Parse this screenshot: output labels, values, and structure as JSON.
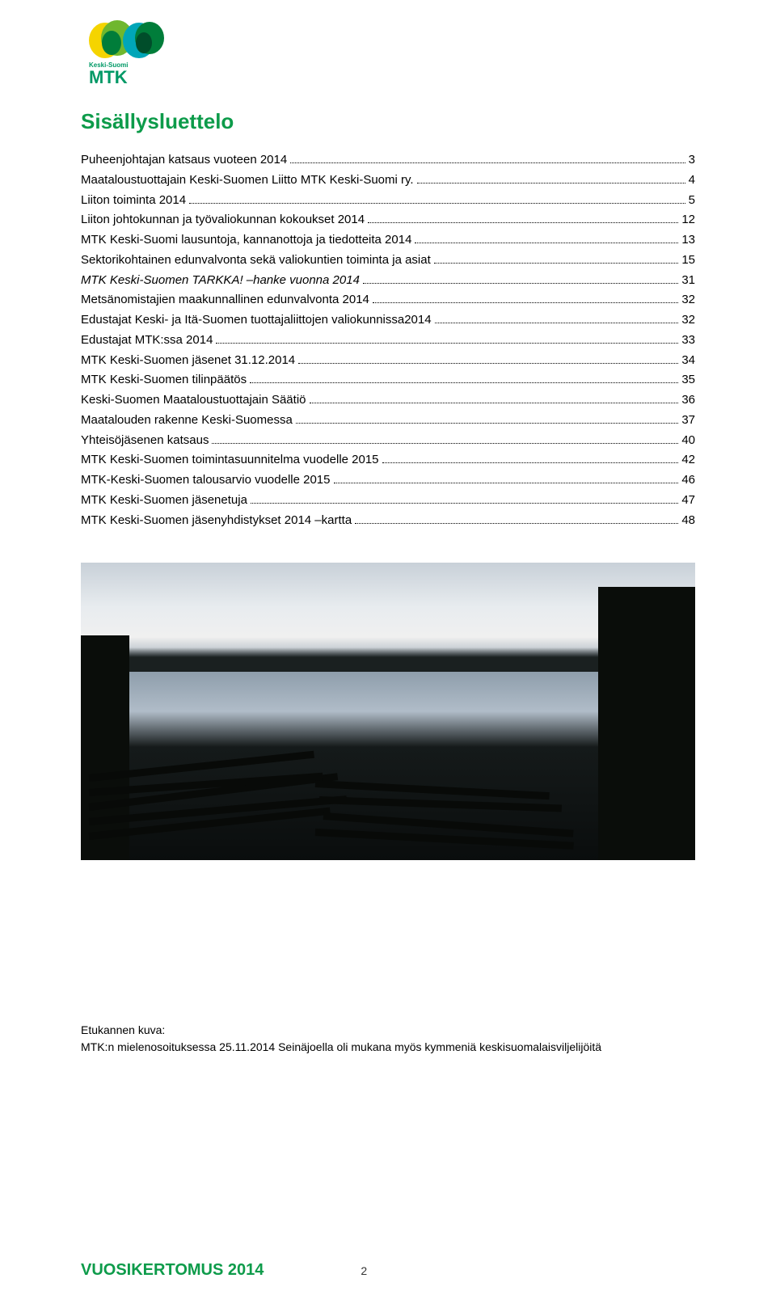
{
  "logo": {
    "org_prefix": "Keski-Suomi",
    "org_name": "MTK",
    "colors": {
      "yellow": "#f5d400",
      "green_light": "#6fb72e",
      "green_dark": "#007d3a",
      "teal": "#00a6b8",
      "text": "#009966"
    }
  },
  "title": "Sisällysluettelo",
  "title_color": "#0d9b4a",
  "toc": {
    "items": [
      {
        "label": "Puheenjohtajan katsaus vuoteen 2014",
        "page": "3",
        "italic": false
      },
      {
        "label": "Maataloustuottajain Keski-Suomen Liitto MTK Keski-Suomi ry.",
        "page": "4",
        "italic": false
      },
      {
        "label": "Liiton toiminta 2014",
        "page": "5",
        "italic": false
      },
      {
        "label": "Liiton johtokunnan ja työvaliokunnan kokoukset 2014",
        "page": "12",
        "italic": false
      },
      {
        "label": "MTK Keski-Suomi lausuntoja, kannanottoja ja tiedotteita 2014",
        "page": "13",
        "italic": false
      },
      {
        "label": "Sektorikohtainen edunvalvonta sekä valiokuntien toiminta ja asiat",
        "page": "15",
        "italic": false
      },
      {
        "label": "MTK Keski-Suomen TARKKA! –hanke vuonna 2014",
        "page": "31",
        "italic": true
      },
      {
        "label": "Metsänomistajien maakunnallinen edunvalvonta 2014",
        "page": "32",
        "italic": false
      },
      {
        "label": "Edustajat Keski- ja Itä-Suomen tuottajaliittojen valiokunnissa2014",
        "page": "32",
        "italic": false
      },
      {
        "label": "Edustajat MTK:ssa 2014",
        "page": "33",
        "italic": false
      },
      {
        "label": "MTK Keski-Suomen jäsenet 31.12.2014",
        "page": "34",
        "italic": false
      },
      {
        "label": "MTK Keski-Suomen tilinpäätös",
        "page": "35",
        "italic": false
      },
      {
        "label": "Keski-Suomen Maataloustuottajain Säätiö",
        "page": "36",
        "italic": false
      },
      {
        "label": "Maatalouden rakenne Keski-Suomessa",
        "page": "37",
        "italic": false
      },
      {
        "label": "Yhteisöjäsenen katsaus",
        "page": "40",
        "italic": false
      },
      {
        "label": "MTK Keski-Suomen toimintasuunnitelma vuodelle 2015",
        "page": "42",
        "italic": false
      },
      {
        "label": "MTK-Keski-Suomen talousarvio vuodelle 2015",
        "page": "46",
        "italic": false
      },
      {
        "label": "MTK Keski-Suomen jäsenetuja",
        "page": "47",
        "italic": false
      },
      {
        "label": "MTK Keski-Suomen jäsenyhdistykset 2014 –kartta",
        "page": "48",
        "italic": false
      }
    ],
    "font_size": 15,
    "line_height": 1.65,
    "text_color": "#000000"
  },
  "photo": {
    "description": "Misty lakeside landscape at dawn with dark silhouettes of trees and wooden fence rails in foreground",
    "sky_colors": [
      "#c8d0d8",
      "#e8ecef",
      "#f0f0f0"
    ],
    "mist_color": "#8a9aa8",
    "foreground_color": "#0a0d0d"
  },
  "caption": {
    "line1": "Etukannen kuva:",
    "line2": "MTK:n mielenosoituksessa 25.11.2014 Seinäjoella oli mukana myös kymmeniä keskisuomalaisviljelijöitä"
  },
  "footer": {
    "title": "VUOSIKERTOMUS 2014",
    "page_number": "2",
    "title_color": "#0d9b4a"
  }
}
